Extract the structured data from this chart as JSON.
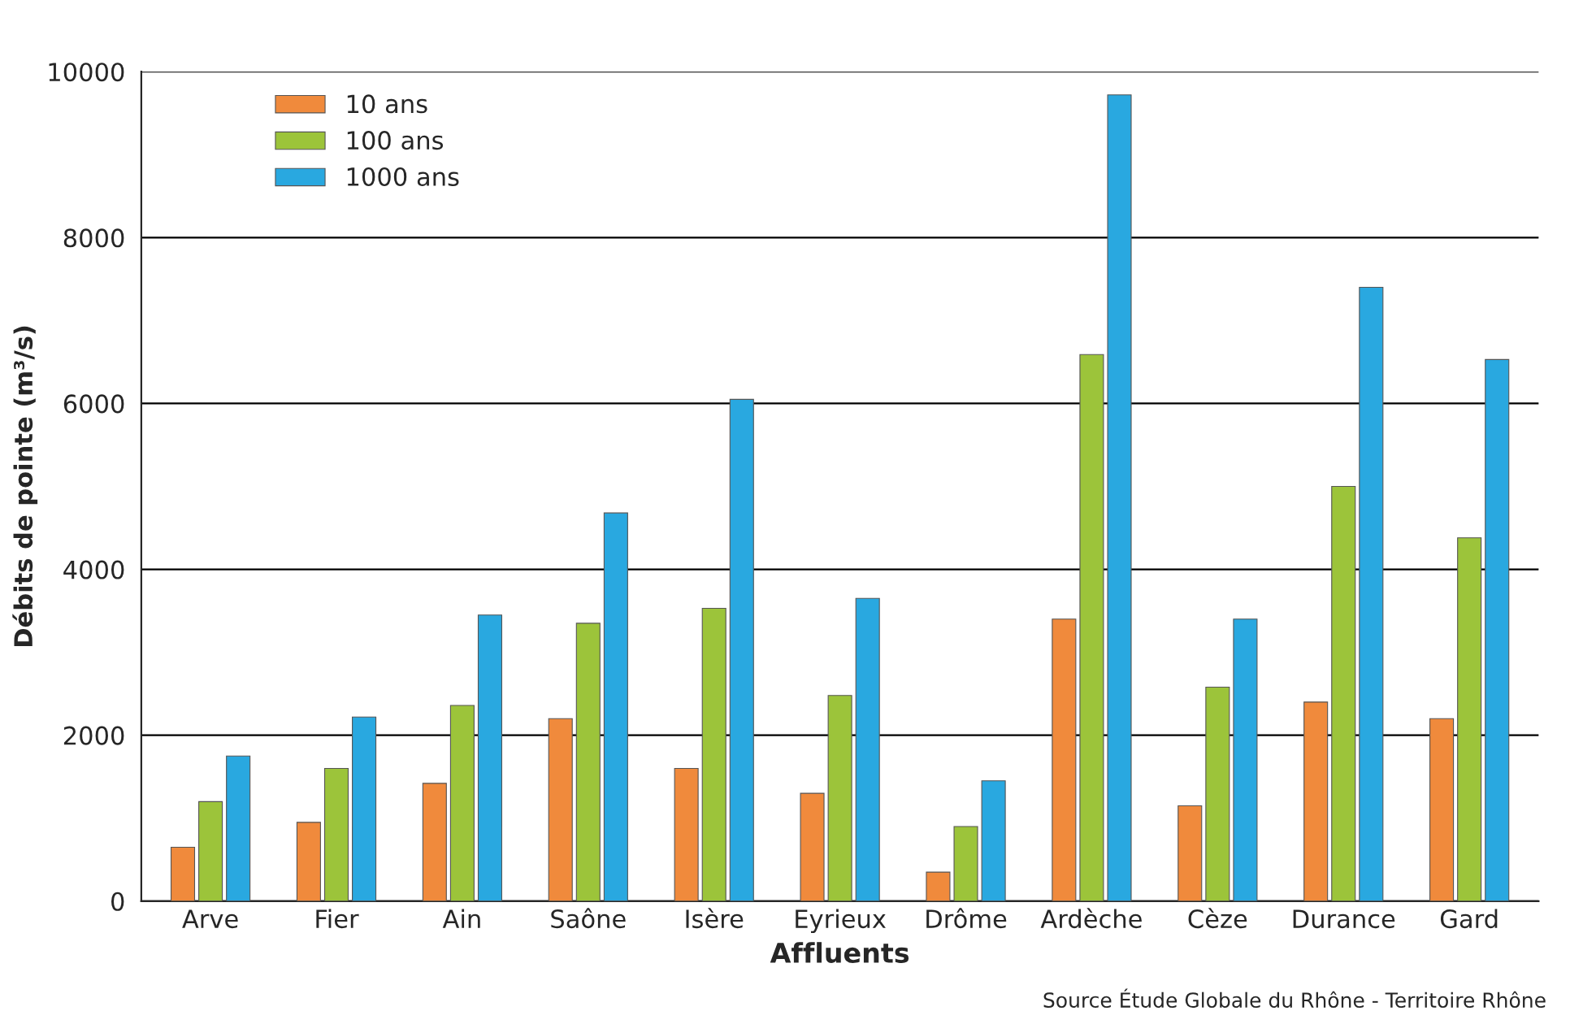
{
  "chart_data": {
    "type": "bar",
    "xlabel": "Affluents",
    "ylabel": "Débits de pointe (m³/s)",
    "categories": [
      "Arve",
      "Fier",
      "Ain",
      "Saône",
      "Isère",
      "Eyrieux",
      "Drôme",
      "Ardèche",
      "Cèze",
      "Durance",
      "Gard"
    ],
    "series": [
      {
        "name": "10 ans",
        "color": "#f08a3c",
        "values": [
          650,
          950,
          1420,
          2200,
          1600,
          1300,
          350,
          3400,
          1150,
          2400,
          2200
        ]
      },
      {
        "name": "100 ans",
        "color": "#9cc43a",
        "values": [
          1200,
          1600,
          2360,
          3350,
          3530,
          2480,
          900,
          6590,
          2580,
          5000,
          4380
        ]
      },
      {
        "name": "1000 ans",
        "color": "#29a8e0",
        "values": [
          1750,
          2220,
          3450,
          4680,
          6050,
          3650,
          1450,
          9720,
          3400,
          7400,
          6530
        ]
      }
    ],
    "ylim": [
      0,
      10000
    ],
    "yticks": [
      0,
      2000,
      4000,
      6000,
      8000,
      10000
    ],
    "grid": "y",
    "legend": "top left",
    "annotations": [
      "Source Étude Globale du Rhône - Territoire Rhône"
    ]
  }
}
